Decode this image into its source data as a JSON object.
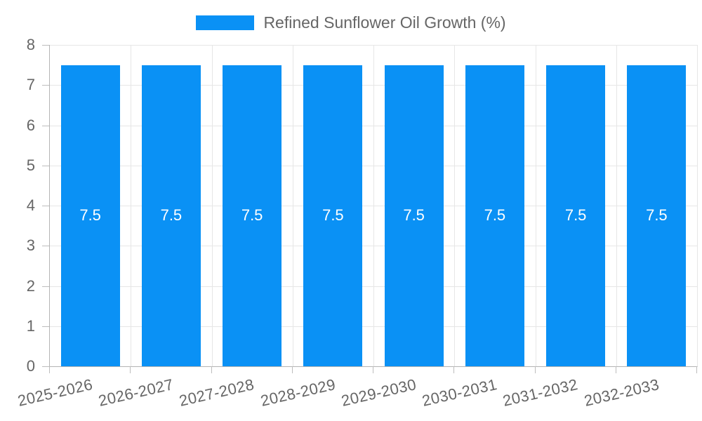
{
  "chart_data": {
    "type": "bar",
    "title": "Refined Sunflower Oil Growth (%)",
    "categories": [
      "2025-2026",
      "2026-2027",
      "2027-2028",
      "2028-2029",
      "2029-2030",
      "2030-2031",
      "2031-2032",
      "2032-2033"
    ],
    "series": [
      {
        "name": "Refined Sunflower Oil Growth (%)",
        "values": [
          7.5,
          7.5,
          7.5,
          7.5,
          7.5,
          7.5,
          7.5,
          7.5
        ]
      }
    ],
    "value_labels": [
      "7.5",
      "7.5",
      "7.5",
      "7.5",
      "7.5",
      "7.5",
      "7.5",
      "7.5"
    ],
    "xlabel": "",
    "ylabel": "",
    "ylim": [
      0,
      8
    ],
    "yticks": [
      0,
      1,
      2,
      3,
      4,
      5,
      6,
      7,
      8
    ],
    "grid": true,
    "legend_position": "top",
    "colors": {
      "bar": "#0a91f5",
      "value_label_text": "#ffffff",
      "axis_text": "#666666",
      "gridline": "#e6e6e6",
      "axis_line": "#b4b4b4",
      "background": "#ffffff"
    }
  }
}
